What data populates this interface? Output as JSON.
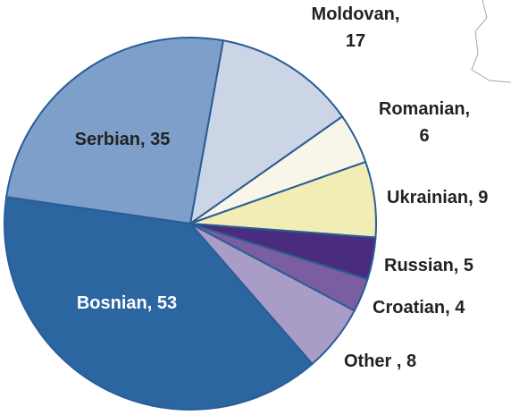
{
  "chart_data": {
    "type": "pie",
    "values": [
      17,
      6,
      9,
      5,
      4,
      8,
      53,
      35
    ],
    "value_labels": [
      "Moldovan,\n17",
      "Romanian,\n6",
      "Ukrainian, 9",
      "Russian, 5",
      "Croatian, 4",
      "Other , 8",
      "Bosnian, 53",
      "Serbian, 35"
    ],
    "colors": [
      "#ccd5e6",
      "#f8f6e8",
      "#f1edb5",
      "#4a2c7e",
      "#7a5ea1",
      "#a99cc6",
      "#2b66a1",
      "#7e9fc9"
    ]
  }
}
